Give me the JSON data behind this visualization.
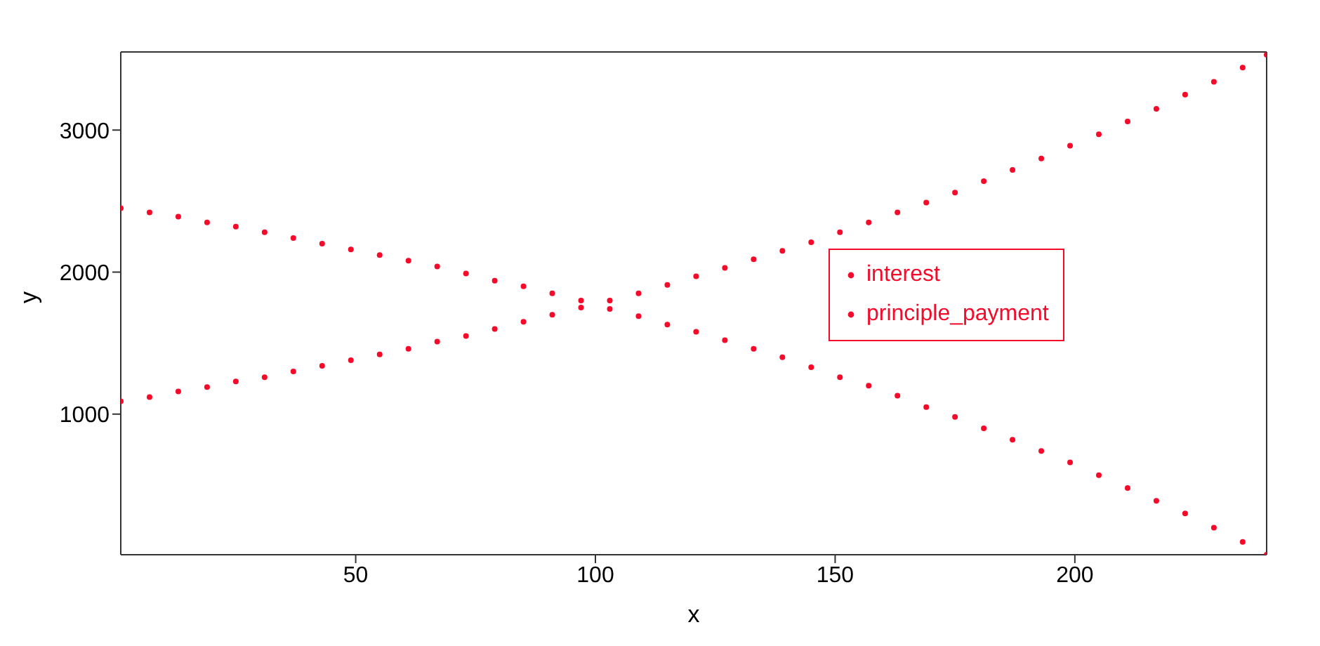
{
  "chart_data": {
    "type": "scatter",
    "xlabel": "x",
    "ylabel": "y",
    "xlim": [
      1,
      240
    ],
    "ylim": [
      10,
      3550
    ],
    "xticks": [
      50,
      100,
      150,
      200
    ],
    "yticks": [
      1000,
      2000,
      3000
    ],
    "marker": "circle",
    "legend": "right",
    "grid": false,
    "x": [
      1,
      7,
      13,
      19,
      25,
      31,
      37,
      43,
      49,
      55,
      61,
      67,
      73,
      79,
      85,
      91,
      97,
      103,
      109,
      115,
      121,
      127,
      133,
      139,
      145,
      151,
      157,
      163,
      169,
      175,
      181,
      187,
      193,
      199,
      205,
      211,
      217,
      223,
      229,
      235,
      240
    ],
    "series": [
      {
        "name": "interest",
        "color": "#f50a2a",
        "values": [
          2450,
          2420,
          2390,
          2350,
          2320,
          2280,
          2240,
          2200,
          2160,
          2120,
          2080,
          2040,
          1990,
          1940,
          1900,
          1850,
          1800,
          1740,
          1690,
          1630,
          1580,
          1520,
          1460,
          1400,
          1330,
          1260,
          1200,
          1130,
          1050,
          980,
          900,
          820,
          740,
          660,
          570,
          480,
          390,
          300,
          200,
          100,
          10
        ]
      },
      {
        "name": "principle_payment",
        "color": "#f50a2a",
        "values": [
          1090,
          1120,
          1160,
          1190,
          1230,
          1260,
          1300,
          1340,
          1380,
          1420,
          1460,
          1510,
          1550,
          1600,
          1650,
          1700,
          1750,
          1800,
          1850,
          1910,
          1970,
          2030,
          2090,
          2150,
          2210,
          2280,
          2350,
          2420,
          2490,
          2560,
          2640,
          2720,
          2800,
          2890,
          2970,
          3060,
          3150,
          3250,
          3340,
          3440,
          3530
        ]
      }
    ]
  }
}
